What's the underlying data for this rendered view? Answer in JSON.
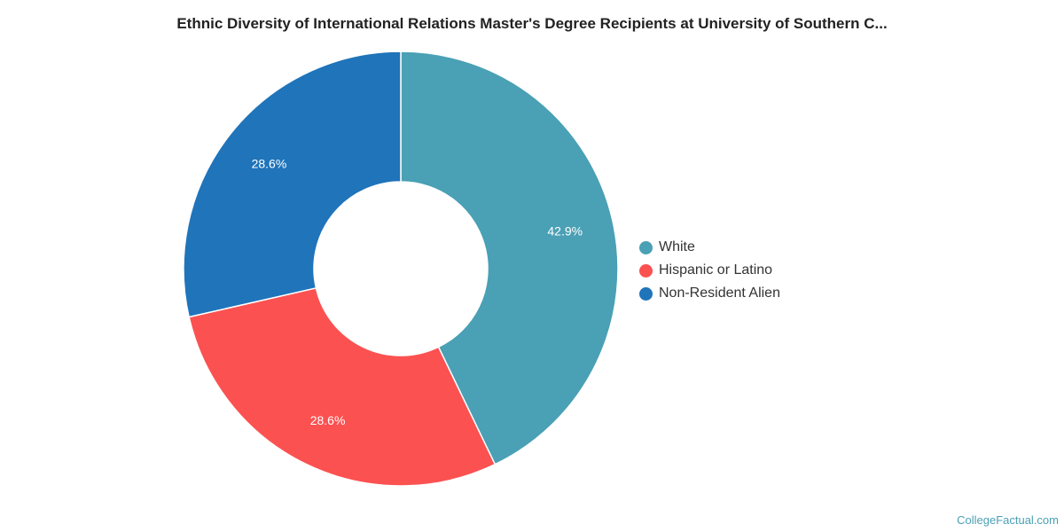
{
  "chart_data": {
    "type": "pie",
    "title": "Ethnic Diversity of International Relations Master's Degree Recipients at University of Southern C...",
    "categories": [
      "White",
      "Hispanic or Latino",
      "Non-Resident Alien"
    ],
    "values": [
      42.9,
      28.6,
      28.6
    ],
    "data_labels": [
      "42.9%",
      "28.6%",
      "28.6%"
    ],
    "colors": [
      "#4aa0b5",
      "#fc5151",
      "#1f74ba"
    ],
    "donut": true,
    "legend_position": "right"
  },
  "credit": "CollegeFactual.com"
}
